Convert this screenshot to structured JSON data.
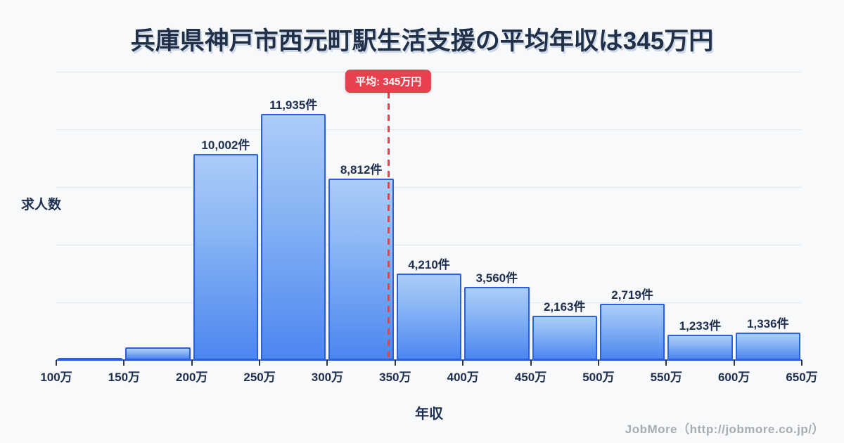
{
  "title": "兵庫県神戸市西元町駅生活支援の平均年収は345万円",
  "footer": "JobMore（http://jobmore.co.jp/）",
  "colors": {
    "background": "#f8f9fb",
    "bar_fill_top": "#aacdf8",
    "bar_fill_bottom": "#4c86f0",
    "bar_border": "#2a60dc",
    "accent_red": "#e8414d",
    "text_dark": "#1d2e4e",
    "grid_line": "#e3e8f1",
    "footer_gray": "#a8abb2"
  },
  "chart_data": {
    "type": "bar",
    "title": "兵庫県神戸市西元町駅生活支援の平均年収は345万円",
    "xlabel": "年収",
    "ylabel": "求人数",
    "x_ticks": [
      "100万",
      "150万",
      "200万",
      "250万",
      "300万",
      "350万",
      "400万",
      "450万",
      "500万",
      "550万",
      "600万",
      "650万"
    ],
    "x_range": [
      100,
      650
    ],
    "ylim": [
      0,
      14000
    ],
    "grid": true,
    "legend": "none",
    "bars": [
      {
        "range_start": "100万",
        "range_end": "150万",
        "value": 70,
        "label": ""
      },
      {
        "range_start": "150万",
        "range_end": "200万",
        "value": 610,
        "label": ""
      },
      {
        "range_start": "200万",
        "range_end": "250万",
        "value": 10002,
        "label": "10,002件"
      },
      {
        "range_start": "250万",
        "range_end": "300万",
        "value": 11935,
        "label": "11,935件"
      },
      {
        "range_start": "300万",
        "range_end": "350万",
        "value": 8812,
        "label": "8,812件"
      },
      {
        "range_start": "350万",
        "range_end": "400万",
        "value": 4210,
        "label": "4,210件"
      },
      {
        "range_start": "400万",
        "range_end": "450万",
        "value": 3560,
        "label": "3,560件"
      },
      {
        "range_start": "450万",
        "range_end": "500万",
        "value": 2163,
        "label": "2,163件"
      },
      {
        "range_start": "500万",
        "range_end": "550万",
        "value": 2719,
        "label": "2,719件"
      },
      {
        "range_start": "550万",
        "range_end": "600万",
        "value": 1233,
        "label": "1,233件"
      },
      {
        "range_start": "600万",
        "range_end": "650万",
        "value": 1336,
        "label": "1,336件"
      }
    ],
    "average": {
      "value": 345,
      "label": "平均: 345万円"
    }
  }
}
